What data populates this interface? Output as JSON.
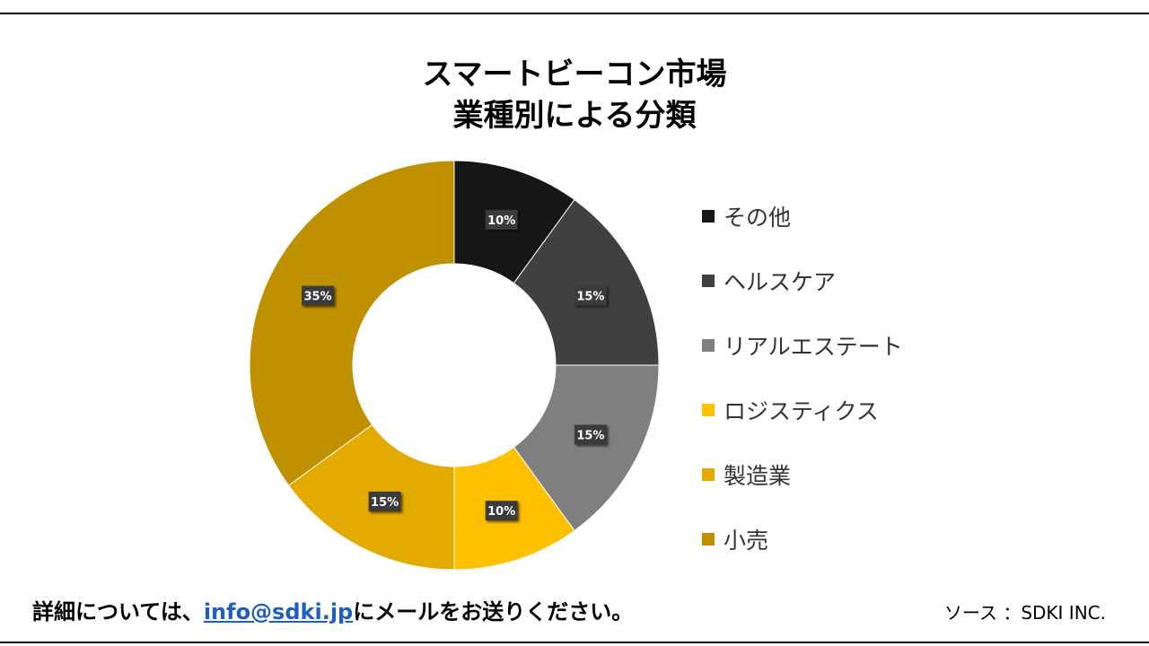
{
  "title_line1": "スマートビーコン市場",
  "title_line2": "業種別による分類",
  "footer": {
    "prefix": "詳細については、",
    "email": "info@sdki.jp",
    "suffix": "にメールをお送りください。",
    "source": "ソース ：SDKI INC."
  },
  "chart_data": {
    "type": "pie",
    "donut": true,
    "title": "スマートビーコン市場 業種別による分類",
    "legend_position": "right",
    "categories": [
      "その他",
      "ヘルスケア",
      "リアルエステート",
      "ロジスティクス",
      "製造業",
      "小売"
    ],
    "values": [
      10,
      15,
      15,
      10,
      15,
      35
    ],
    "labels": [
      "10%",
      "15%",
      "15%",
      "10%",
      "15%",
      "35%"
    ],
    "colors": [
      "#161616",
      "#404040",
      "#7f7f7f",
      "#ffc000",
      "#e3aa00",
      "#bf9000"
    ]
  }
}
